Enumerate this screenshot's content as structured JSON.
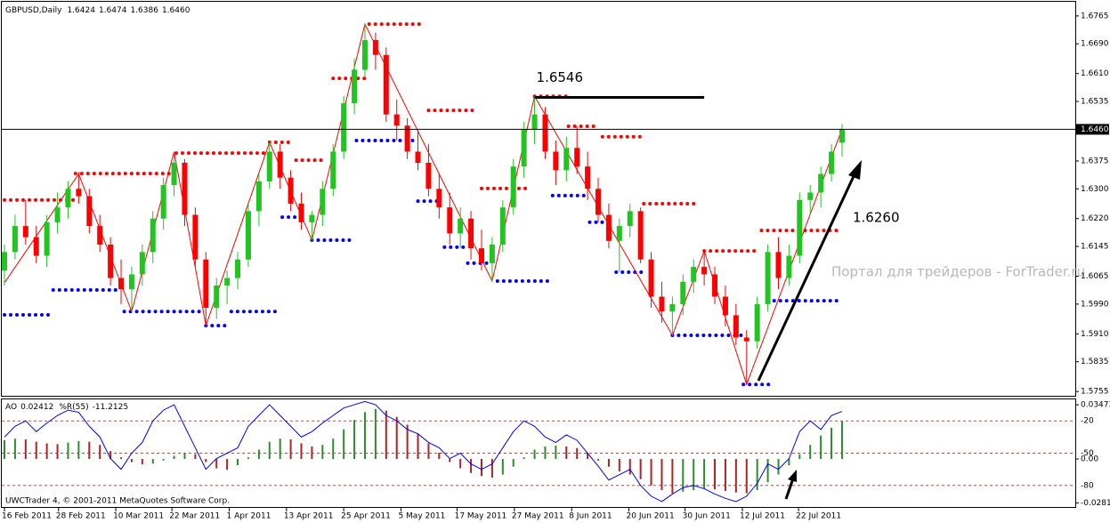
{
  "chart_data": [
    {
      "type": "candlestick",
      "symbol": "GBPUSD,Daily",
      "current_price": {
        "value": 1.646,
        "label": "1.6460"
      },
      "up_color": "#22c422",
      "down_color": "#ff0000",
      "xlim": [
        0,
        101
      ],
      "ylim": [
        1.5741,
        1.6803
      ],
      "yticks": [
        1.6765,
        {
          "value": 1.669,
          "label": "1.6690"
        },
        {
          "value": 1.661,
          "label": "1.6610"
        },
        1.6535,
        1.6375,
        {
          "value": 1.63,
          "label": "1.6300"
        },
        {
          "value": 1.622,
          "label": "1.6220"
        },
        1.6145,
        1.6065,
        {
          "value": 1.599,
          "label": "1.5990"
        },
        {
          "value": 1.591,
          "label": "1.5910"
        },
        1.5835,
        1.5755
      ],
      "xticks": [
        {
          "value": 0,
          "label": "16 Feb 2011"
        },
        {
          "value": 5.1,
          "label": "28 Feb 2011"
        },
        {
          "value": 10.5,
          "label": "10 Mar 2011"
        },
        {
          "value": 15.8,
          "label": "22 Mar 2011"
        },
        {
          "value": 21.2,
          "label": "1 Apr 2011"
        },
        {
          "value": 26.6,
          "label": "13 Apr 2011"
        },
        {
          "value": 32,
          "label": "25 Apr 2011"
        },
        {
          "value": 37.4,
          "label": "5 May 2011"
        },
        {
          "value": 42.7,
          "label": "17 May 2011"
        },
        {
          "value": 48.1,
          "label": "27 May 2011"
        },
        {
          "value": 53.5,
          "label": "8 Jun 2011"
        },
        {
          "value": 58.9,
          "label": "20 Jun 2011"
        },
        {
          "value": 64.2,
          "label": "30 Jun 2011"
        },
        {
          "value": 69.6,
          "label": "12 Jul 2011"
        },
        {
          "value": 74.9,
          "label": "22 Jul 2011"
        }
      ],
      "ohlc": [
        [
          1.608,
          1.615,
          1.604,
          1.613
        ],
        [
          1.613,
          1.623,
          1.611,
          1.62
        ],
        [
          1.62,
          1.627,
          1.615,
          1.617
        ],
        [
          1.617,
          1.62,
          1.61,
          1.612
        ],
        [
          1.612,
          1.623,
          1.609,
          1.621
        ],
        [
          1.621,
          1.629,
          1.618,
          1.625
        ],
        [
          1.625,
          1.632,
          1.622,
          1.63
        ],
        [
          1.63,
          1.6345,
          1.626,
          1.628
        ],
        [
          1.628,
          1.63,
          1.618,
          1.62
        ],
        [
          1.62,
          1.623,
          1.613,
          1.615
        ],
        [
          1.615,
          1.617,
          1.604,
          1.606
        ],
        [
          1.606,
          1.611,
          1.599,
          1.603
        ],
        [
          1.603,
          1.609,
          1.597,
          1.607
        ],
        [
          1.607,
          1.615,
          1.604,
          1.613
        ],
        [
          1.613,
          1.624,
          1.61,
          1.622
        ],
        [
          1.622,
          1.633,
          1.619,
          1.631
        ],
        [
          1.631,
          1.64,
          1.628,
          1.637
        ],
        [
          1.637,
          1.638,
          1.62,
          1.623
        ],
        [
          1.623,
          1.625,
          1.609,
          1.611
        ],
        [
          1.611,
          1.613,
          1.5932,
          1.598
        ],
        [
          1.598,
          1.606,
          1.595,
          1.604
        ],
        [
          1.604,
          1.608,
          1.599,
          1.606
        ],
        [
          1.606,
          1.613,
          1.603,
          1.611
        ],
        [
          1.611,
          1.626,
          1.609,
          1.624
        ],
        [
          1.624,
          1.634,
          1.62,
          1.632
        ],
        [
          1.632,
          1.6425,
          1.63,
          1.64
        ],
        [
          1.64,
          1.642,
          1.63,
          1.633
        ],
        [
          1.633,
          1.635,
          1.624,
          1.626
        ],
        [
          1.626,
          1.629,
          1.619,
          1.621
        ],
        [
          1.621,
          1.624,
          1.6162,
          1.623
        ],
        [
          1.623,
          1.632,
          1.62,
          1.63
        ],
        [
          1.63,
          1.642,
          1.628,
          1.64
        ],
        [
          1.64,
          1.655,
          1.638,
          1.653
        ],
        [
          1.653,
          1.665,
          1.65,
          1.662
        ],
        [
          1.662,
          1.6743,
          1.66,
          1.67
        ],
        [
          1.67,
          1.672,
          1.662,
          1.666
        ],
        [
          1.666,
          1.668,
          1.648,
          1.65
        ],
        [
          1.65,
          1.654,
          1.643,
          1.647
        ],
        [
          1.647,
          1.649,
          1.638,
          1.64
        ],
        [
          1.64,
          1.646,
          1.635,
          1.637
        ],
        [
          1.637,
          1.642,
          1.628,
          1.63
        ],
        [
          1.63,
          1.634,
          1.622,
          1.625
        ],
        [
          1.625,
          1.629,
          1.615,
          1.618
        ],
        [
          1.618,
          1.625,
          1.614,
          1.622
        ],
        [
          1.622,
          1.624,
          1.611,
          1.614
        ],
        [
          1.614,
          1.619,
          1.608,
          1.61
        ],
        [
          1.61,
          1.617,
          1.6052,
          1.615
        ],
        [
          1.615,
          1.627,
          1.613,
          1.625
        ],
        [
          1.625,
          1.638,
          1.623,
          1.636
        ],
        [
          1.636,
          1.648,
          1.633,
          1.646
        ],
        [
          1.646,
          1.6549,
          1.642,
          1.65
        ],
        [
          1.65,
          1.652,
          1.638,
          1.64
        ],
        [
          1.64,
          1.643,
          1.631,
          1.635
        ],
        [
          1.635,
          1.644,
          1.632,
          1.641
        ],
        [
          1.641,
          1.6468,
          1.634,
          1.636
        ],
        [
          1.636,
          1.64,
          1.627,
          1.63
        ],
        [
          1.63,
          1.633,
          1.621,
          1.623
        ],
        [
          1.623,
          1.626,
          1.614,
          1.616
        ],
        [
          1.616,
          1.622,
          1.6076,
          1.62
        ],
        [
          1.62,
          1.626,
          1.617,
          1.624
        ],
        [
          1.624,
          1.625,
          1.61,
          1.611
        ],
        [
          1.611,
          1.613,
          1.598,
          1.601
        ],
        [
          1.601,
          1.605,
          1.594,
          1.597
        ],
        [
          1.597,
          1.601,
          1.5906,
          1.599
        ],
        [
          1.599,
          1.607,
          1.596,
          1.605
        ],
        [
          1.605,
          1.611,
          1.602,
          1.609
        ],
        [
          1.609,
          1.6133,
          1.604,
          1.607
        ],
        [
          1.607,
          1.609,
          1.599,
          1.601
        ],
        [
          1.601,
          1.604,
          1.593,
          1.596
        ],
        [
          1.596,
          1.599,
          1.588,
          1.59
        ],
        [
          1.59,
          1.592,
          1.5774,
          1.589
        ],
        [
          1.589,
          1.601,
          1.587,
          1.599
        ],
        [
          1.599,
          1.615,
          1.597,
          1.613
        ],
        [
          1.613,
          1.617,
          1.603,
          1.606
        ],
        [
          1.606,
          1.615,
          1.604,
          1.612
        ],
        [
          1.612,
          1.629,
          1.61,
          1.627
        ],
        [
          1.627,
          1.631,
          1.623,
          1.629
        ],
        [
          1.629,
          1.636,
          1.625,
          1.634
        ],
        [
          1.634,
          1.642,
          1.632,
          1.64
        ],
        [
          1.6424,
          1.6474,
          1.6386,
          1.646
        ]
      ],
      "resistance_color": "#ff0000",
      "support_color": "#0000ff",
      "resistance": [
        {
          "start": 0,
          "end": 6.5,
          "value": 1.627
        },
        {
          "start": 6.7,
          "end": 16,
          "value": 1.6341
        },
        {
          "start": 16.2,
          "end": 24.5,
          "value": 1.6396
        },
        {
          "start": 25,
          "end": 27.3,
          "value": 1.6425
        },
        {
          "start": 27.5,
          "end": 30,
          "value": 1.6377
        },
        {
          "start": 31,
          "end": 34,
          "value": 1.6597
        },
        {
          "start": 34.4,
          "end": 39.5,
          "value": 1.6743
        },
        {
          "start": 40,
          "end": 44.5,
          "value": 1.6511
        },
        {
          "start": 45,
          "end": 49.5,
          "value": 1.6301
        },
        {
          "start": 50,
          "end": 53,
          "value": 1.6549
        },
        {
          "start": 53.2,
          "end": 56,
          "value": 1.6468
        },
        {
          "start": 56.4,
          "end": 60,
          "value": 1.644
        },
        {
          "start": 60.3,
          "end": 65.5,
          "value": 1.626
        },
        {
          "start": 66,
          "end": 71.2,
          "value": 1.6133
        },
        {
          "start": 71.4,
          "end": 79,
          "value": 1.6188
        }
      ],
      "support": [
        {
          "start": 0,
          "end": 4.4,
          "value": 1.5961
        },
        {
          "start": 4.6,
          "end": 10.9,
          "value": 1.6028
        },
        {
          "start": 11.3,
          "end": 18.5,
          "value": 1.597
        },
        {
          "start": 19,
          "end": 21,
          "value": 1.5932
        },
        {
          "start": 21.4,
          "end": 26,
          "value": 1.597
        },
        {
          "start": 26.2,
          "end": 28.5,
          "value": 1.6224
        },
        {
          "start": 29,
          "end": 32.7,
          "value": 1.6162
        },
        {
          "start": 33.2,
          "end": 38.6,
          "value": 1.643
        },
        {
          "start": 39,
          "end": 41,
          "value": 1.6267
        },
        {
          "start": 41.5,
          "end": 43.5,
          "value": 1.6143
        },
        {
          "start": 43.7,
          "end": 46,
          "value": 1.61
        },
        {
          "start": 46.5,
          "end": 51.5,
          "value": 1.6052
        },
        {
          "start": 51.7,
          "end": 55,
          "value": 1.6282
        },
        {
          "start": 55.2,
          "end": 57.5,
          "value": 1.621
        },
        {
          "start": 57.7,
          "end": 60.5,
          "value": 1.6076
        },
        {
          "start": 63,
          "end": 69.5,
          "value": 1.5906
        },
        {
          "start": 69.7,
          "end": 72.2,
          "value": 1.5774
        },
        {
          "start": 72.6,
          "end": 79,
          "value": 1.5999
        }
      ],
      "zigzag": {
        "color": "#ff0000",
        "x": [
          0,
          7,
          12,
          16,
          19,
          25,
          29,
          34,
          46,
          50,
          63,
          66,
          70,
          79
        ],
        "values": [
          1.6047,
          1.634,
          1.597,
          1.64,
          1.5932,
          1.6425,
          1.6162,
          1.6743,
          1.6052,
          1.6549,
          1.5906,
          1.6133,
          1.5774,
          1.6461
        ]
      },
      "level_line": {
        "value": 1.6546,
        "start": 50,
        "end": 66
      },
      "annotation": "1.6260",
      "watermark": "Портал для трейдеров - ForTrader.ru"
    },
    {
      "type": "oscillator",
      "copyright": "UWCTrader 4, © 2001-2011 MetaQuotes Software Corp.",
      "ao": {
        "name": "AO",
        "up_color": "#2e8b2e",
        "down_color": "#b22222",
        "ylim": [
          -0.0308,
          0.0382
        ],
        "yticks": [
          0.03473,
          {
            "value": 0,
            "label": "0.00"
          },
          -0.02817
        ],
        "values": [
          0.012,
          0.013,
          0.0125,
          0.011,
          0.01,
          0.0095,
          0.0105,
          0.0115,
          0.011,
          0.009,
          0.005,
          0.001,
          -0.002,
          -0.0035,
          -0.003,
          -0.001,
          0.002,
          0.004,
          0.003,
          -0.002,
          -0.006,
          -0.007,
          -0.004,
          0.001,
          0.006,
          0.011,
          0.013,
          0.0125,
          0.01,
          0.008,
          0.009,
          0.013,
          0.019,
          0.025,
          0.03,
          0.032,
          0.031,
          0.027,
          0.022,
          0.016,
          0.01,
          0.004,
          -0.002,
          -0.006,
          -0.009,
          -0.011,
          -0.012,
          -0.01,
          -0.005,
          0.001,
          0.006,
          0.008,
          0.0085,
          0.008,
          0.007,
          0.004,
          -0.001,
          -0.005,
          -0.008,
          -0.01,
          -0.013,
          -0.017,
          -0.02,
          -0.022,
          -0.021,
          -0.02,
          -0.019,
          -0.0195,
          -0.0205,
          -0.0215,
          -0.022,
          -0.02,
          -0.015,
          -0.01,
          -0.004,
          0.003,
          0.009,
          0.015,
          0.02,
          0.02412
        ]
      },
      "wpr": {
        "name": "%R(55)",
        "color": "#0000ff",
        "ylim": [
          -100,
          0
        ],
        "yticks": [
          -20,
          -50,
          -80
        ],
        "grid_color": "#b05050",
        "values": [
          -35,
          -25,
          -20,
          -30,
          -22,
          -15,
          -10,
          -12,
          -25,
          -35,
          -55,
          -65,
          -50,
          -40,
          -20,
          -10,
          -5,
          -25,
          -45,
          -65,
          -55,
          -50,
          -45,
          -25,
          -15,
          -5,
          -15,
          -25,
          -35,
          -30,
          -22,
          -15,
          -8,
          -5,
          -2,
          -5,
          -15,
          -20,
          -28,
          -32,
          -40,
          -45,
          -55,
          -50,
          -60,
          -65,
          -60,
          -45,
          -30,
          -20,
          -25,
          -35,
          -40,
          -33,
          -38,
          -50,
          -62,
          -75,
          -70,
          -65,
          -80,
          -90,
          -95,
          -88,
          -82,
          -80,
          -83,
          -88,
          -92,
          -95,
          -90,
          -78,
          -60,
          -65,
          -55,
          -30,
          -20,
          -28,
          -15,
          -11.2125
        ]
      }
    }
  ]
}
